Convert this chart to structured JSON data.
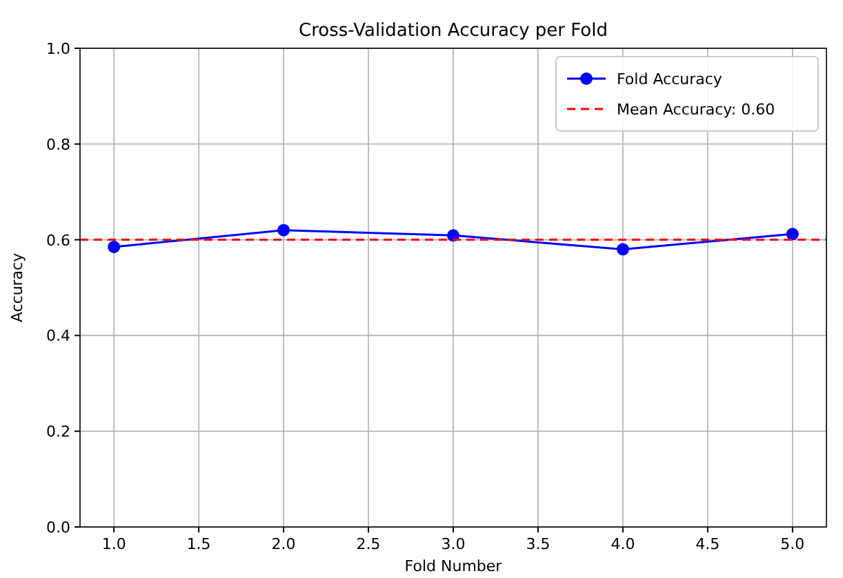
{
  "chart_data": {
    "type": "line",
    "title": "Cross-Validation Accuracy per Fold",
    "xlabel": "Fold Number",
    "ylabel": "Accuracy",
    "x": [
      1,
      2,
      3,
      4,
      5
    ],
    "series": [
      {
        "name": "Fold Accuracy",
        "color": "#0000ff",
        "values": [
          0.585,
          0.62,
          0.609,
          0.58,
          0.612
        ]
      }
    ],
    "xlim": [
      0.8,
      5.2
    ],
    "xticks": [
      {
        "value": 1,
        "label": "1.0"
      },
      {
        "value": 1.5,
        "label": "1.5"
      },
      {
        "value": 2,
        "label": "2.0"
      },
      {
        "value": 2.5,
        "label": "2.5"
      },
      {
        "value": 3,
        "label": "3.0"
      },
      {
        "value": 3.5,
        "label": "3.5"
      },
      {
        "value": 4,
        "label": "4.0"
      },
      {
        "value": 4.5,
        "label": "4.5"
      },
      {
        "value": 5,
        "label": "5.0"
      }
    ],
    "ylim": [
      0,
      1
    ],
    "yticks": [
      {
        "value": 0,
        "label": "0.0"
      },
      {
        "value": 0.2,
        "label": "0.2"
      },
      {
        "value": 0.4,
        "label": "0.4"
      },
      {
        "value": 0.6,
        "label": "0.6"
      },
      {
        "value": 0.8,
        "label": "0.8"
      },
      {
        "value": 1,
        "label": "1.0"
      }
    ],
    "ref_lines": [
      {
        "axis": "y",
        "value": 0.6,
        "label": "Mean Accuracy: 0.60",
        "color": "#ff0000",
        "line_style": "dashed"
      }
    ],
    "grid": true,
    "legend": "top right",
    "marker": "circle",
    "line_style": "solid"
  }
}
